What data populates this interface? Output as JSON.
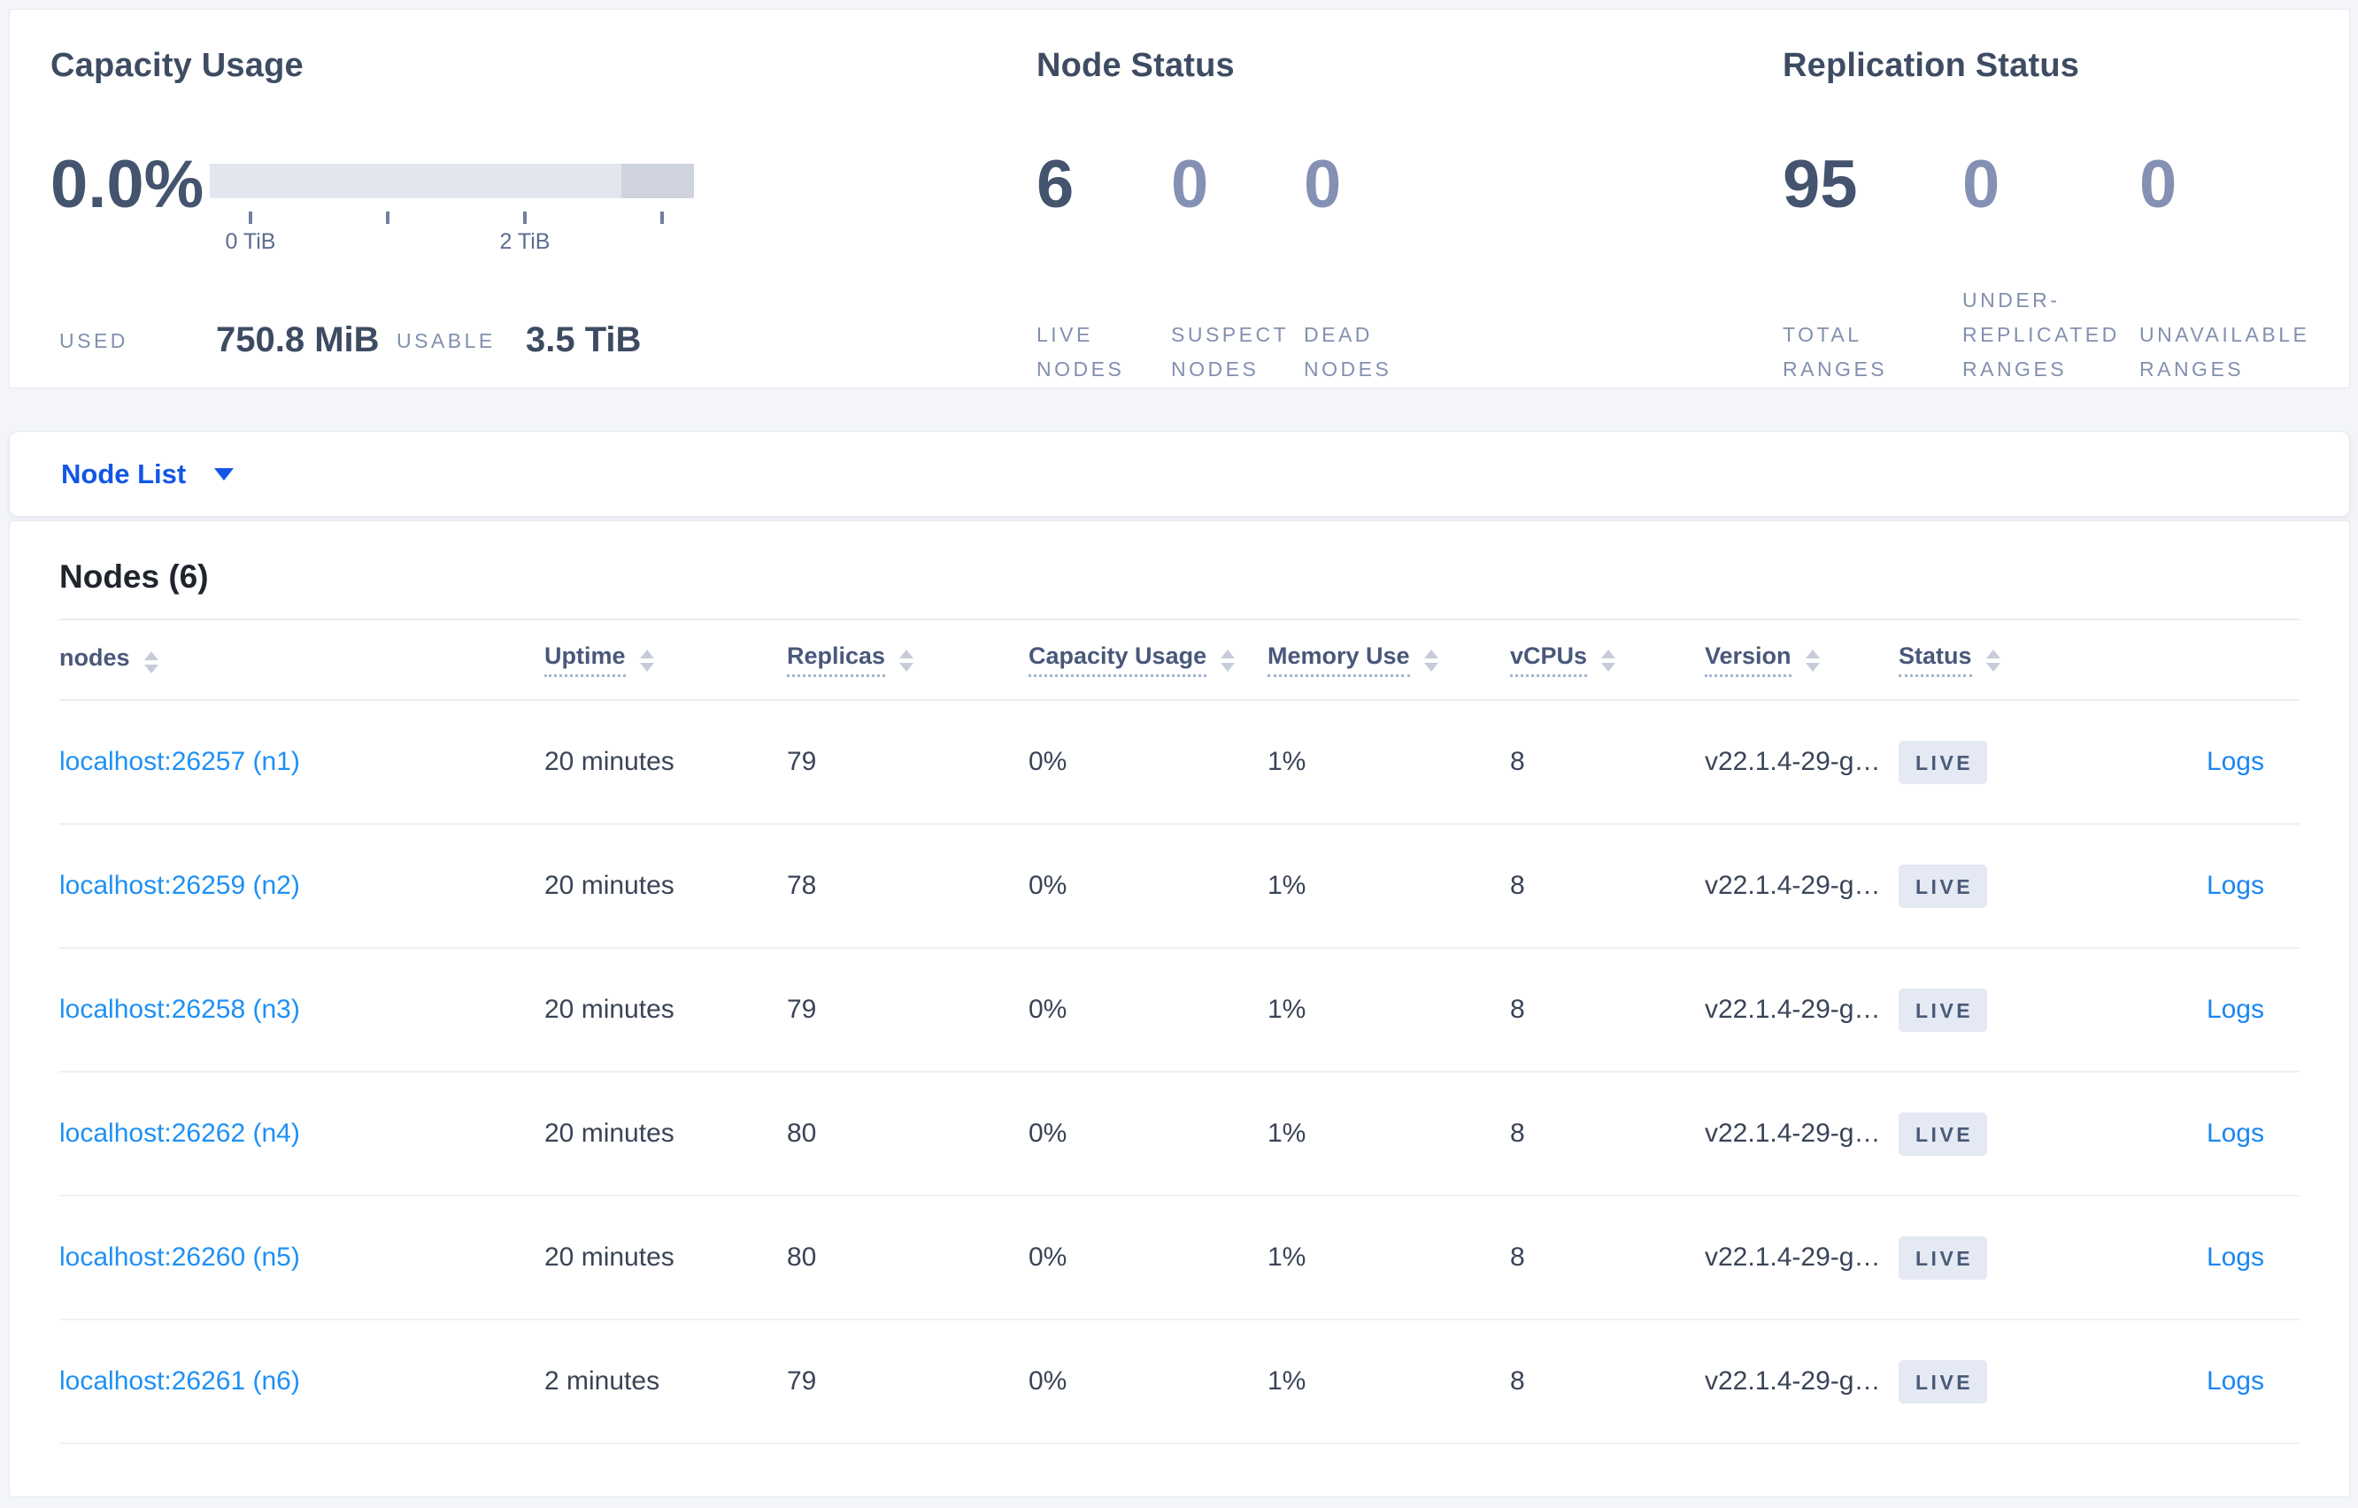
{
  "colors": {
    "page_background": "#f3f5f9",
    "card_background": "#ffffff",
    "accent_link_blue": "#1e90f4",
    "selector_blue": "#1256e8",
    "dark_number": "#44536e",
    "muted_number": "#8490b4",
    "muted_label": "#8290ae",
    "badge_background": "#e4e9f3",
    "badge_text": "#4a5b77",
    "gauge_light": "#e3e6ef",
    "gauge_dark": "#cfd3de"
  },
  "summary": {
    "capacity": {
      "title": "Capacity Usage",
      "percent": "0.0%",
      "gauge": {
        "tick_label_0": "0 TiB",
        "tick_label_2": "2 TiB",
        "max": "3.5 TiB"
      },
      "used_label": "USED",
      "used_value": "750.8 MiB",
      "usable_label": "USABLE",
      "usable_value": "3.5 TiB"
    },
    "node_status": {
      "title": "Node Status",
      "stats": [
        {
          "value": "6",
          "label_lines": [
            "LIVE",
            "NODES"
          ]
        },
        {
          "value": "0",
          "label_lines": [
            "SUSPECT",
            "NODES"
          ]
        },
        {
          "value": "0",
          "label_lines": [
            "DEAD",
            "NODES"
          ]
        }
      ]
    },
    "replication": {
      "title": "Replication Status",
      "stats": [
        {
          "value": "95",
          "label_lines": [
            "TOTAL",
            "RANGES"
          ]
        },
        {
          "value": "0",
          "label_lines": [
            "UNDER-",
            "REPLICATED",
            "RANGES"
          ]
        },
        {
          "value": "0",
          "label_lines": [
            "UNAVAILABLE",
            "RANGES"
          ]
        }
      ]
    }
  },
  "view_selector": {
    "label": "Node List"
  },
  "nodes_table": {
    "title": "Nodes (6)",
    "columns": [
      {
        "label": "nodes",
        "tooltip": false
      },
      {
        "label": "Uptime",
        "tooltip": true
      },
      {
        "label": "Replicas",
        "tooltip": true
      },
      {
        "label": "Capacity Usage",
        "tooltip": true
      },
      {
        "label": "Memory Use",
        "tooltip": true
      },
      {
        "label": "vCPUs",
        "tooltip": true
      },
      {
        "label": "Version",
        "tooltip": true
      },
      {
        "label": "Status",
        "tooltip": true
      },
      {
        "label": "",
        "tooltip": false
      }
    ],
    "rows": [
      {
        "node": "localhost:26257 (n1)",
        "uptime": "20 minutes",
        "replicas": "79",
        "capacity_usage": "0%",
        "memory_use": "1%",
        "vcpus": "8",
        "version": "v22.1.4-29-g…",
        "status": "LIVE",
        "logs": "Logs"
      },
      {
        "node": "localhost:26259 (n2)",
        "uptime": "20 minutes",
        "replicas": "78",
        "capacity_usage": "0%",
        "memory_use": "1%",
        "vcpus": "8",
        "version": "v22.1.4-29-g…",
        "status": "LIVE",
        "logs": "Logs"
      },
      {
        "node": "localhost:26258 (n3)",
        "uptime": "20 minutes",
        "replicas": "79",
        "capacity_usage": "0%",
        "memory_use": "1%",
        "vcpus": "8",
        "version": "v22.1.4-29-g…",
        "status": "LIVE",
        "logs": "Logs"
      },
      {
        "node": "localhost:26262 (n4)",
        "uptime": "20 minutes",
        "replicas": "80",
        "capacity_usage": "0%",
        "memory_use": "1%",
        "vcpus": "8",
        "version": "v22.1.4-29-g…",
        "status": "LIVE",
        "logs": "Logs"
      },
      {
        "node": "localhost:26260 (n5)",
        "uptime": "20 minutes",
        "replicas": "80",
        "capacity_usage": "0%",
        "memory_use": "1%",
        "vcpus": "8",
        "version": "v22.1.4-29-g…",
        "status": "LIVE",
        "logs": "Logs"
      },
      {
        "node": "localhost:26261 (n6)",
        "uptime": "2 minutes",
        "replicas": "79",
        "capacity_usage": "0%",
        "memory_use": "1%",
        "vcpus": "8",
        "version": "v22.1.4-29-g…",
        "status": "LIVE",
        "logs": "Logs"
      }
    ]
  }
}
